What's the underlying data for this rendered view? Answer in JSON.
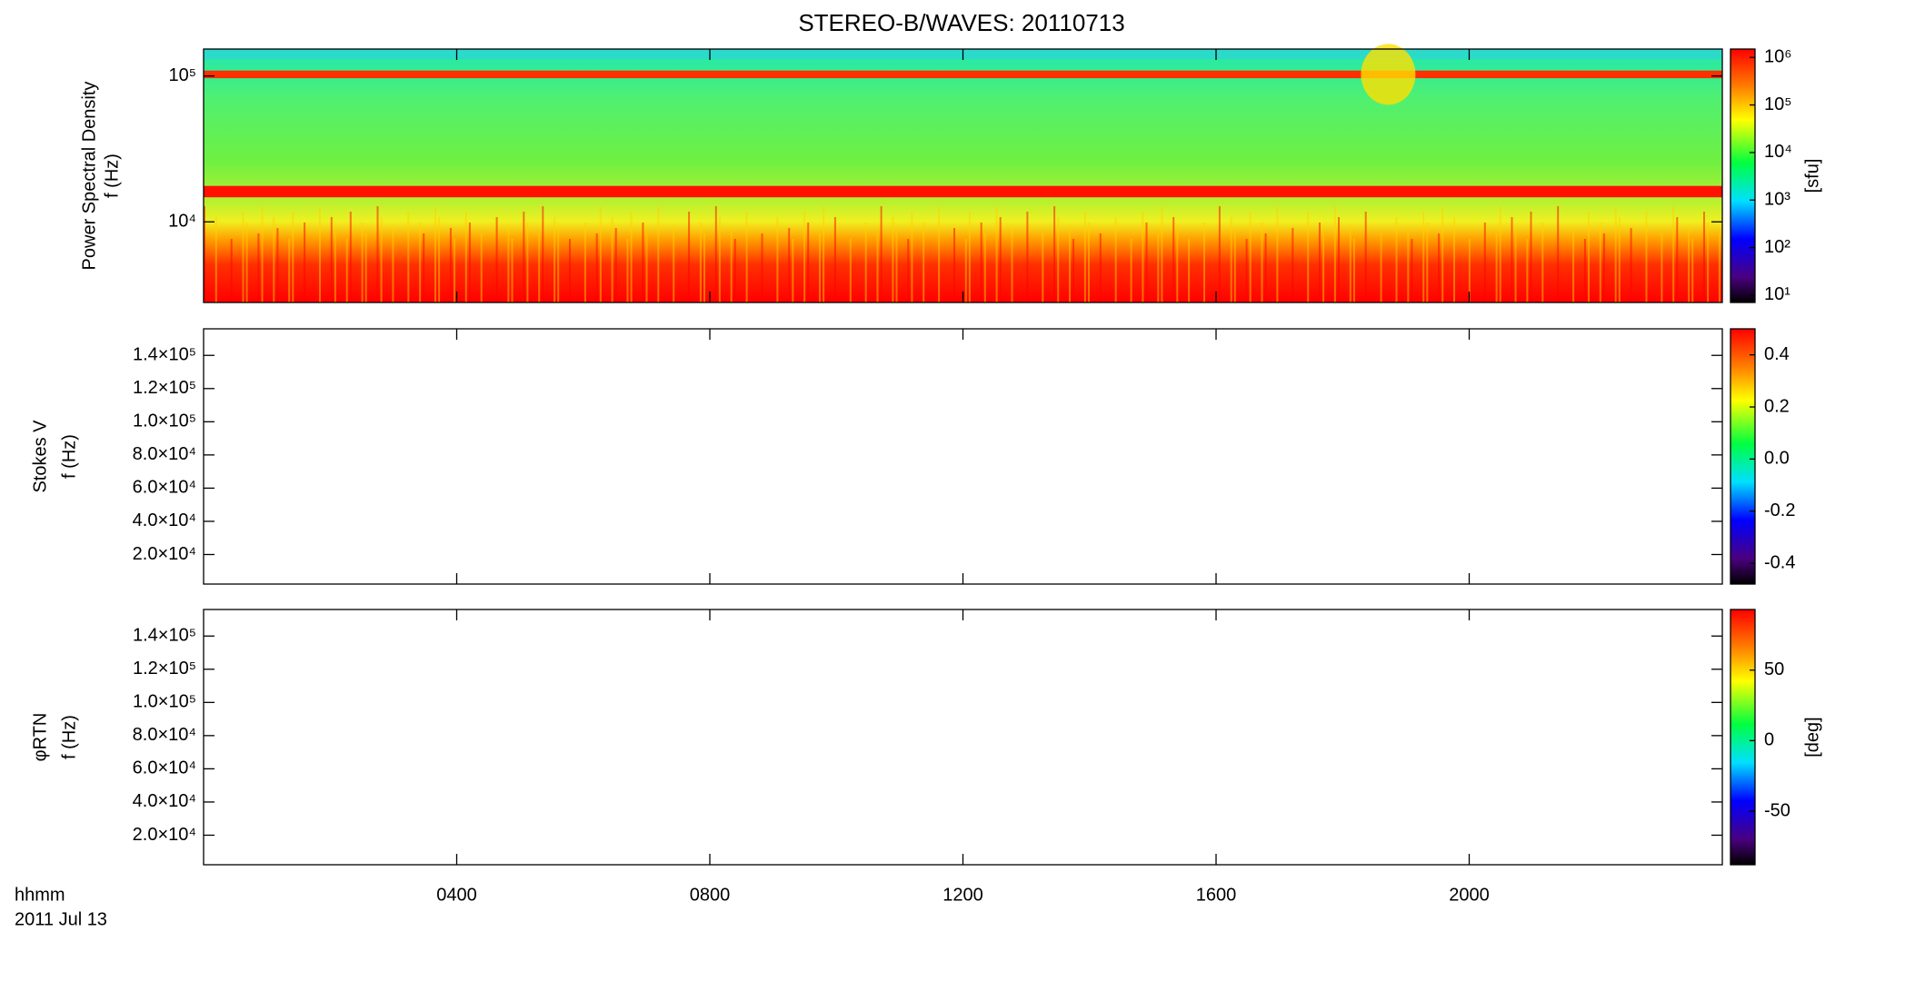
{
  "chart_data": [
    {
      "type": "spectrogram",
      "title": "STEREO-B/WAVES: 20110713",
      "ylabel": [
        "Power Spectral Density",
        "f (Hz)"
      ],
      "ylog": true,
      "ylim": [
        2800,
        153000
      ],
      "yticks": [
        {
          "value": 10000,
          "label": "10⁴"
        },
        {
          "value": 100000,
          "label": "10⁵"
        }
      ],
      "xlim": [
        0,
        24
      ],
      "xticks": [
        4,
        8,
        12,
        16,
        20
      ],
      "colorbar": {
        "log": true,
        "lim": [
          7,
          1500000
        ],
        "label": "[sfu]",
        "ticks": [
          {
            "value": 10,
            "label": "10¹"
          },
          {
            "value": 100,
            "label": "10²"
          },
          {
            "value": 1000,
            "label": "10³"
          },
          {
            "value": 10000,
            "label": "10⁴"
          },
          {
            "value": 100000,
            "label": "10⁵"
          },
          {
            "value": 1000000,
            "label": "10⁶"
          }
        ]
      }
    },
    {
      "type": "spectrogram",
      "ylabel": [
        "Stokes V",
        "f (Hz)"
      ],
      "ylog": false,
      "ylim": [
        2200,
        156000
      ],
      "yticks": [
        {
          "value": 20000,
          "label": "2.0×10⁴"
        },
        {
          "value": 40000,
          "label": "4.0×10⁴"
        },
        {
          "value": 60000,
          "label": "6.0×10⁴"
        },
        {
          "value": 80000,
          "label": "8.0×10⁴"
        },
        {
          "value": 100000,
          "label": "1.0×10⁵"
        },
        {
          "value": 120000,
          "label": "1.2×10⁵"
        },
        {
          "value": 140000,
          "label": "1.4×10⁵"
        }
      ],
      "xlim": [
        0,
        24
      ],
      "xticks": [
        4,
        8,
        12,
        16,
        20
      ],
      "colorbar": {
        "log": false,
        "lim": [
          -0.48,
          0.5
        ],
        "ticks": [
          -0.4,
          -0.2,
          {
            "value": 0,
            "label": "0.0"
          },
          0.2,
          0.4
        ]
      }
    },
    {
      "type": "spectrogram",
      "ylabel": [
        "φRTN",
        "f (Hz)"
      ],
      "ylog": false,
      "ylim": [
        2200,
        156000
      ],
      "yticks": [
        {
          "value": 20000,
          "label": "2.0×10⁴"
        },
        {
          "value": 40000,
          "label": "4.0×10⁴"
        },
        {
          "value": 60000,
          "label": "6.0×10⁴"
        },
        {
          "value": 80000,
          "label": "8.0×10⁴"
        },
        {
          "value": 100000,
          "label": "1.0×10⁵"
        },
        {
          "value": 120000,
          "label": "1.2×10⁵"
        },
        {
          "value": 140000,
          "label": "1.4×10⁵"
        }
      ],
      "xlim": [
        0,
        24
      ],
      "xlabel": "hhmm",
      "date": "2011 Jul 13",
      "xticks": [
        {
          "value": 4,
          "label": "0400"
        },
        {
          "value": 8,
          "label": "0800"
        },
        {
          "value": 12,
          "label": "1200"
        },
        {
          "value": 16,
          "label": "1600"
        },
        {
          "value": 20,
          "label": "2000"
        }
      ],
      "colorbar": {
        "log": false,
        "lim": [
          -88,
          93
        ],
        "label": "[deg]",
        "ticks": [
          -50,
          0,
          50
        ]
      }
    }
  ]
}
